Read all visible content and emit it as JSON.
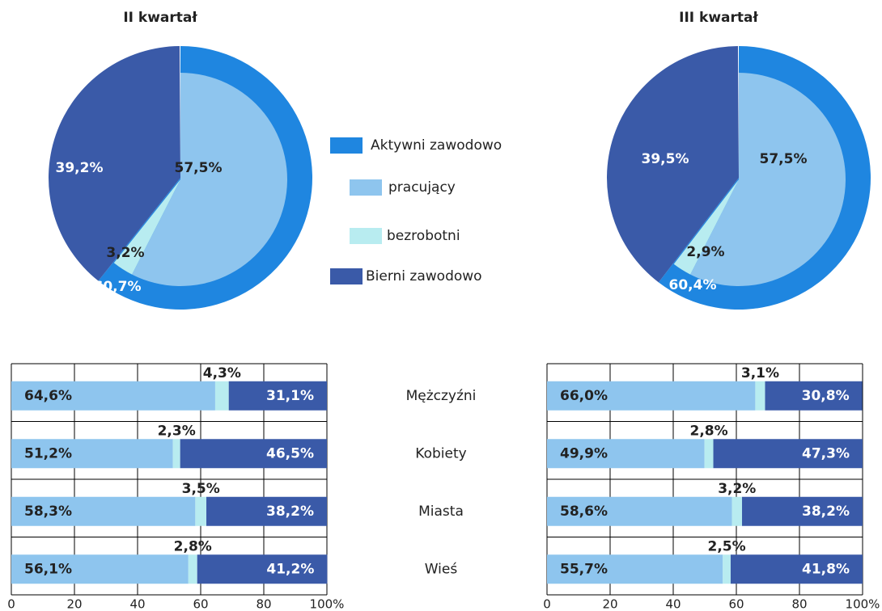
{
  "legend": {
    "names": [
      "Aktywni zawodowo",
      "pracujący",
      "bezrobotni",
      "Bierni zawodowo"
    ],
    "colors": [
      "#1f86e0",
      "#8ec5ee",
      "#b8ecf0",
      "#3a5aa8"
    ]
  },
  "chart_data": [
    {
      "type": "pie",
      "title": "II kwartał",
      "values": [
        60.7,
        57.5,
        3.2,
        39.2
      ],
      "value_labels": [
        "60,7%",
        "57,5%",
        "3,2%",
        "39,2%"
      ]
    },
    {
      "type": "pie",
      "title": "III kwartał",
      "values": [
        60.4,
        57.5,
        2.9,
        39.5
      ],
      "value_labels": [
        "60,4%",
        "57,5%",
        "2,9%",
        "39,5%"
      ]
    },
    {
      "type": "bar",
      "stacked": true,
      "horizontal": true,
      "grid": true,
      "categories": [
        "Mężczyźni",
        "Kobiety",
        "Miasta",
        "Wieś"
      ],
      "series": [
        {
          "color": "#8ec5ee",
          "values": [
            64.6,
            51.2,
            58.3,
            56.1
          ],
          "value_labels": [
            "64,6%",
            "51,2%",
            "58,3%",
            "56,1%"
          ]
        },
        {
          "color": "#b8ecf0",
          "values": [
            4.3,
            2.3,
            3.5,
            2.8
          ],
          "value_labels": [
            "4,3%",
            "2,3%",
            "3,5%",
            "2,8%"
          ]
        },
        {
          "color": "#3a5aa8",
          "values": [
            31.1,
            46.5,
            38.2,
            41.2
          ],
          "value_labels": [
            "31,1%",
            "46,5%",
            "38,2%",
            "41,2%"
          ]
        }
      ],
      "xlim": [
        0,
        100
      ],
      "xticks": [
        0,
        20,
        40,
        60,
        80,
        {
          "value": 100,
          "label": "100%"
        }
      ]
    },
    {
      "type": "bar",
      "stacked": true,
      "horizontal": true,
      "grid": true,
      "series": [
        {
          "color": "#8ec5ee",
          "values": [
            66.0,
            49.9,
            58.6,
            55.7
          ],
          "value_labels": [
            "66,0%",
            "49,9%",
            "58,6%",
            "55,7%"
          ]
        },
        {
          "color": "#b8ecf0",
          "values": [
            3.1,
            2.8,
            3.2,
            2.5
          ],
          "value_labels": [
            "3,1%",
            "2,8%",
            "3,2%",
            "2,5%"
          ]
        },
        {
          "color": "#3a5aa8",
          "values": [
            30.8,
            47.3,
            38.2,
            41.8
          ],
          "value_labels": [
            "30,8%",
            "47,3%",
            "38,2%",
            "41,8%"
          ]
        }
      ],
      "xlim": [
        0,
        100
      ],
      "xticks": [
        0,
        20,
        40,
        60,
        80,
        {
          "value": 100,
          "label": "100%"
        }
      ]
    }
  ]
}
